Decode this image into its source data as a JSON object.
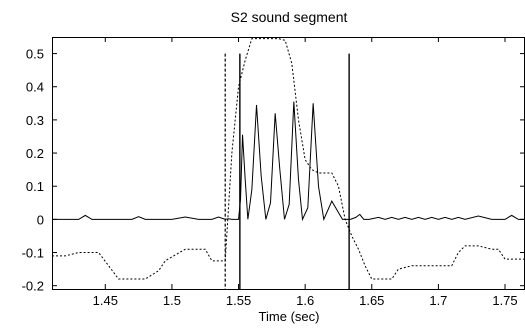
{
  "chart_data": {
    "type": "line",
    "title": "S2 sound segment",
    "xlabel": "Time (sec)",
    "ylabel": "",
    "xlim": [
      1.41,
      1.765
    ],
    "ylim": [
      -0.21,
      0.55
    ],
    "grid": false,
    "legend": "none",
    "x_ticks": [
      1.45,
      1.5,
      1.55,
      1.6,
      1.65,
      1.7,
      1.75
    ],
    "x_tick_labels": [
      "1.45",
      "1.5",
      "1.55",
      "1.6",
      "1.65",
      "1.7",
      "1.75"
    ],
    "y_ticks": [
      -0.2,
      -0.1,
      0,
      0.1,
      0.2,
      0.3,
      0.4,
      0.5
    ],
    "y_tick_labels": [
      "-0.2",
      "-0.1",
      "0",
      "0.1",
      "0.2",
      "0.3",
      "0.4",
      "0.5"
    ],
    "series": [
      {
        "style": "solid",
        "color": "#000000",
        "x": [
          1.41,
          1.42,
          1.43,
          1.435,
          1.44,
          1.45,
          1.47,
          1.475,
          1.48,
          1.5,
          1.51,
          1.52,
          1.53,
          1.535,
          1.54,
          1.5425,
          1.545,
          1.5475,
          1.55,
          1.5515,
          1.553,
          1.555,
          1.557,
          1.56,
          1.5635,
          1.567,
          1.5705,
          1.574,
          1.5775,
          1.581,
          1.5845,
          1.588,
          1.5915,
          1.595,
          1.598,
          1.602,
          1.606,
          1.61,
          1.614,
          1.62,
          1.628,
          1.634,
          1.638,
          1.641,
          1.644,
          1.648,
          1.655,
          1.66,
          1.665,
          1.67,
          1.675,
          1.68,
          1.685,
          1.69,
          1.695,
          1.7,
          1.705,
          1.71,
          1.715,
          1.72,
          1.73,
          1.74,
          1.745,
          1.75,
          1.755,
          1.76,
          1.765
        ],
        "y": [
          0.0,
          0.0,
          0.0,
          0.012,
          0.0,
          0.0,
          0.0,
          0.008,
          0.0,
          0.0,
          0.007,
          0.0,
          0.0,
          0.007,
          0.0,
          0.002,
          0.0,
          0.0,
          0.0,
          0.06,
          0.255,
          0.12,
          0.0,
          0.09,
          0.345,
          0.13,
          0.0,
          0.05,
          0.32,
          0.15,
          0.0,
          0.045,
          0.355,
          0.12,
          0.0,
          0.035,
          0.35,
          0.1,
          0.0,
          0.055,
          0.0,
          0.0,
          0.006,
          0.015,
          0.0,
          0.0,
          0.006,
          0.0,
          0.006,
          0.0,
          0.006,
          0.0,
          0.006,
          0.0,
          0.006,
          0.0,
          0.006,
          0.0,
          0.006,
          0.0,
          0.01,
          0.0,
          0.0,
          0.0,
          0.012,
          0.0,
          0.0
        ]
      },
      {
        "style": "dotted",
        "color": "#000000",
        "x": [
          1.41,
          1.415,
          1.42,
          1.43,
          1.44,
          1.445,
          1.46,
          1.465,
          1.47,
          1.475,
          1.48,
          1.49,
          1.495,
          1.51,
          1.52,
          1.525,
          1.53,
          1.535,
          1.54,
          1.545,
          1.55,
          1.555,
          1.56,
          1.58,
          1.585,
          1.59,
          1.595,
          1.6,
          1.605,
          1.61,
          1.615,
          1.62,
          1.625,
          1.63,
          1.635,
          1.64,
          1.645,
          1.65,
          1.66,
          1.665,
          1.67,
          1.68,
          1.69,
          1.695,
          1.7,
          1.705,
          1.71,
          1.715,
          1.72,
          1.725,
          1.73,
          1.74,
          1.745,
          1.75,
          1.755,
          1.76,
          1.765
        ],
        "y": [
          -0.11,
          -0.11,
          -0.11,
          -0.1,
          -0.1,
          -0.1,
          -0.18,
          -0.18,
          -0.18,
          -0.18,
          -0.18,
          -0.155,
          -0.125,
          -0.09,
          -0.09,
          -0.09,
          -0.125,
          -0.125,
          -0.125,
          0.2,
          0.4,
          0.48,
          0.545,
          0.545,
          0.54,
          0.47,
          0.3,
          0.18,
          0.15,
          0.14,
          0.14,
          0.14,
          0.1,
          0.0,
          -0.05,
          -0.09,
          -0.14,
          -0.18,
          -0.18,
          -0.18,
          -0.15,
          -0.14,
          -0.14,
          -0.14,
          -0.14,
          -0.14,
          -0.14,
          -0.1,
          -0.08,
          -0.08,
          -0.08,
          -0.09,
          -0.09,
          -0.12,
          -0.12,
          -0.12,
          -0.12
        ]
      }
    ],
    "vertical_markers": [
      {
        "x": 1.54,
        "style": "dashed",
        "y_top": 0.5
      },
      {
        "x": 1.551,
        "style": "solid",
        "y_top": 0.5
      },
      {
        "x": 1.633,
        "style": "solid",
        "y_top": 0.5
      }
    ]
  }
}
